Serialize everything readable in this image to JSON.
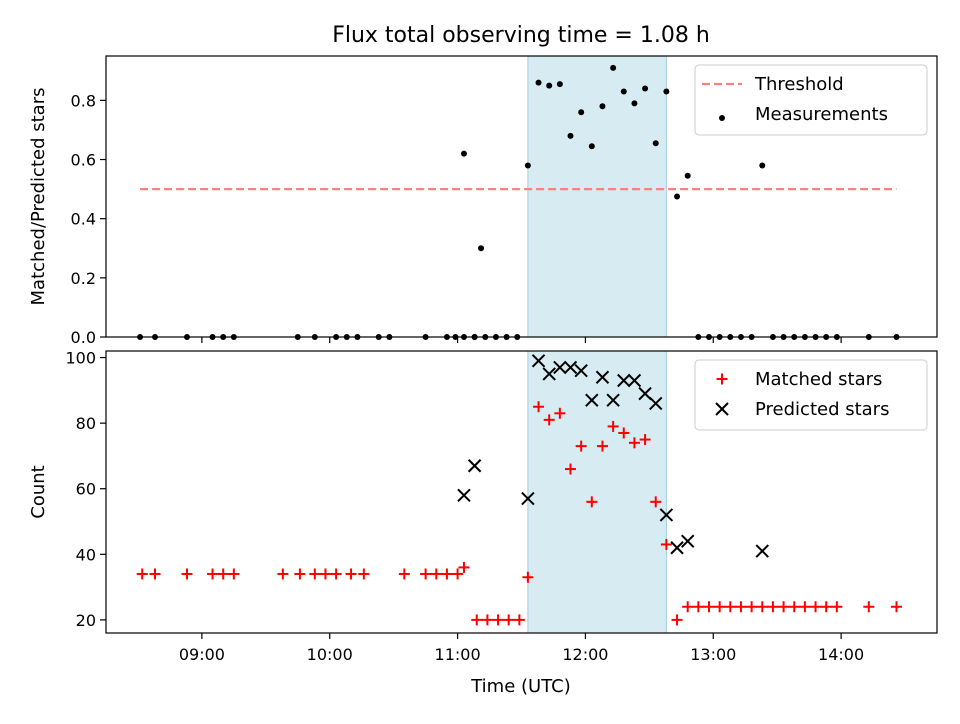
{
  "title": "Flux total observing time = 1.08 h",
  "xlabel": "Time (UTC)",
  "x_ticks": [
    "09:00",
    "10:00",
    "11:00",
    "12:00",
    "13:00",
    "14:00"
  ],
  "chart_data": [
    {
      "type": "scatter",
      "title": "Flux total observing time = 1.08 h",
      "ylabel": "Matched/Predicted stars",
      "xlim": [
        "08:15",
        "14:45"
      ],
      "ylim": [
        0,
        0.95
      ],
      "y_ticks": [
        "0.0",
        "0.2",
        "0.4",
        "0.6",
        "0.8"
      ],
      "grid": false,
      "legend_position": "top-right",
      "highlight_span": [
        "11:33",
        "12:38"
      ],
      "threshold": {
        "name": "Threshold",
        "value": 0.5,
        "x_range": [
          "08:31",
          "14:26"
        ],
        "color": "#ff7f7f"
      },
      "series": [
        {
          "name": "Measurements",
          "color": "#000000",
          "marker": "dot",
          "x": [
            "08:31",
            "08:38",
            "08:53",
            "09:05",
            "09:10",
            "09:15",
            "09:45",
            "09:53",
            "10:03",
            "10:08",
            "10:13",
            "10:23",
            "10:28",
            "10:45",
            "10:55",
            "10:59",
            "11:03",
            "11:08",
            "11:03",
            "11:08",
            "11:11",
            "11:13",
            "11:18",
            "11:23",
            "11:28",
            "11:33",
            "11:38",
            "11:43",
            "11:48",
            "11:53",
            "11:58",
            "12:03",
            "12:08",
            "12:13",
            "12:18",
            "12:23",
            "12:28",
            "12:33",
            "12:38",
            "12:43",
            "12:48",
            "12:53",
            "12:58",
            "13:03",
            "13:08",
            "13:13",
            "13:18",
            "13:23",
            "13:28",
            "13:33",
            "13:38",
            "13:43",
            "13:48",
            "13:53",
            "13:58",
            "14:13",
            "14:26"
          ],
          "y": [
            0,
            0,
            0,
            0,
            0,
            0,
            0,
            0,
            0,
            0,
            0,
            0,
            0,
            0,
            0,
            0,
            0,
            0,
            0.62,
            0,
            0.3,
            0,
            0,
            0,
            0,
            0.58,
            0.86,
            0.85,
            0.855,
            0.68,
            0.76,
            0.645,
            0.78,
            0.91,
            0.83,
            0.79,
            0.84,
            0.655,
            0.83,
            0.475,
            0.545,
            0,
            0,
            0,
            0,
            0,
            0,
            0.58,
            0,
            0,
            0,
            0,
            0,
            0,
            0,
            0,
            0
          ]
        }
      ]
    },
    {
      "type": "scatter",
      "ylabel": "Count",
      "xlim": [
        "08:15",
        "14:45"
      ],
      "ylim": [
        16,
        102
      ],
      "y_ticks": [
        "20",
        "40",
        "60",
        "80",
        "100"
      ],
      "grid": false,
      "legend_position": "top-right",
      "highlight_span": [
        "11:33",
        "12:38"
      ],
      "series": [
        {
          "name": "Matched stars",
          "color": "#ff0000",
          "marker": "plus",
          "x": [
            "08:32",
            "08:38",
            "08:53",
            "09:05",
            "09:10",
            "09:15",
            "09:38",
            "09:46",
            "09:53",
            "09:58",
            "10:03",
            "10:10",
            "10:16",
            "10:35",
            "10:45",
            "10:50",
            "10:55",
            "11:00",
            "11:03",
            "11:09",
            "11:14",
            "11:19",
            "11:24",
            "11:29",
            "11:33",
            "11:38",
            "11:43",
            "11:48",
            "11:53",
            "11:58",
            "12:03",
            "12:08",
            "12:13",
            "12:18",
            "12:23",
            "12:28",
            "12:33",
            "12:38",
            "12:43",
            "12:48",
            "12:53",
            "12:58",
            "13:03",
            "13:08",
            "13:13",
            "13:18",
            "13:23",
            "13:28",
            "13:33",
            "13:38",
            "13:43",
            "13:48",
            "13:53",
            "13:58",
            "14:13",
            "14:26"
          ],
          "y": [
            34,
            34,
            34,
            34,
            34,
            34,
            34,
            34,
            34,
            34,
            34,
            34,
            34,
            34,
            34,
            34,
            34,
            34,
            36,
            20,
            20,
            20,
            20,
            20,
            33,
            85,
            81,
            83,
            66,
            73,
            56,
            73,
            79,
            77,
            74,
            75,
            56,
            43,
            20,
            24,
            24,
            24,
            24,
            24,
            24,
            24,
            24,
            24,
            24,
            24,
            24,
            24,
            24,
            24,
            24,
            24
          ]
        },
        {
          "name": "Predicted stars",
          "color": "#000000",
          "marker": "x",
          "x": [
            "11:03",
            "11:08",
            "11:33",
            "11:38",
            "11:43",
            "11:48",
            "11:53",
            "11:58",
            "12:03",
            "12:08",
            "12:13",
            "12:18",
            "12:23",
            "12:28",
            "12:33",
            "12:38",
            "12:43",
            "12:48",
            "13:23"
          ],
          "y": [
            58,
            67,
            57,
            99,
            95,
            97,
            97,
            96,
            87,
            94,
            87,
            93,
            93,
            89,
            86,
            52,
            42,
            44,
            41
          ]
        }
      ]
    }
  ]
}
